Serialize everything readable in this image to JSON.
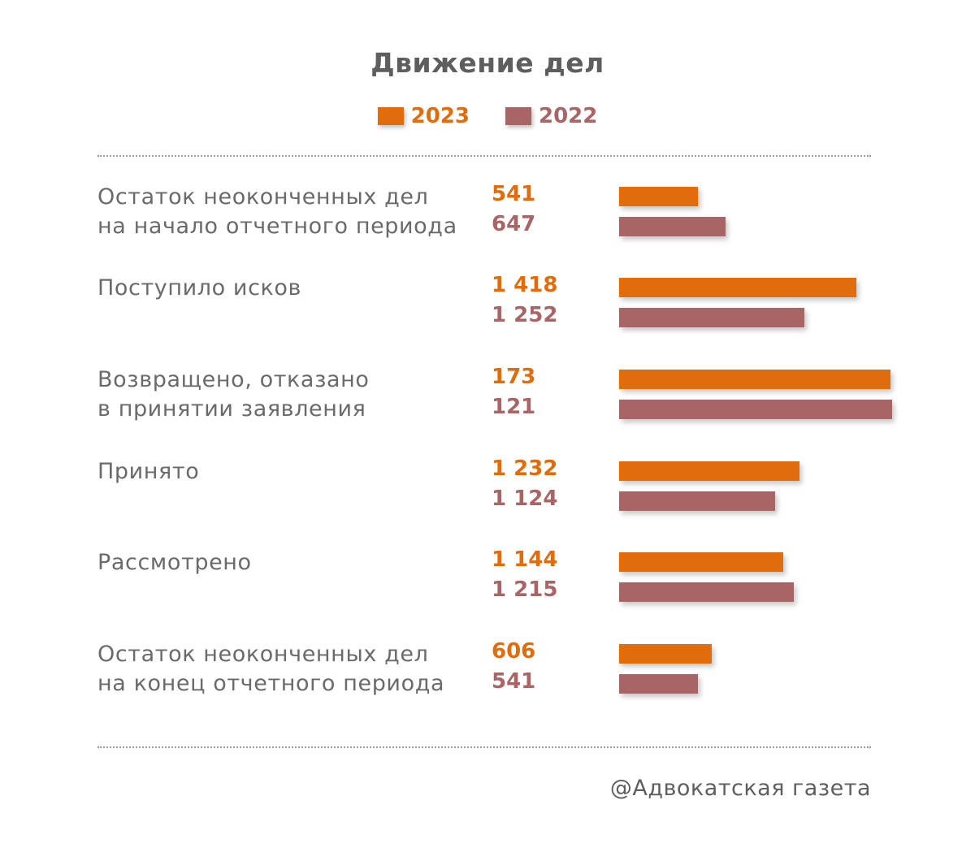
{
  "chart_data": {
    "type": "bar",
    "orientation": "horizontal",
    "title": "Движение дел",
    "legend_position": "top-center",
    "colors": {
      "2023": "#e06c0c",
      "2022": "#a96565"
    },
    "legend": [
      {
        "name": "2023",
        "color": "#e06c0c"
      },
      {
        "name": "2022",
        "color": "#a96565"
      }
    ],
    "categories": [
      [
        "Остаток неоконченных дел",
        "на начало отчетного периода"
      ],
      [
        "Поступило исков"
      ],
      [
        "Возвращено, отказано",
        "в принятии заявления"
      ],
      [
        "Принято"
      ],
      [
        "Рассмотрено"
      ],
      [
        "Остаток неоконченных дел",
        "на конец отчетного периода"
      ]
    ],
    "series": [
      {
        "name": "2023",
        "values": [
          541,
          1418,
          173,
          1232,
          1144,
          606
        ],
        "labels": [
          "541",
          "1 418",
          "173",
          "1 232",
          "1 144",
          "606"
        ]
      },
      {
        "name": "2022",
        "values": [
          647,
          1252,
          121,
          1124,
          1215,
          541
        ],
        "labels": [
          "647",
          "1 252",
          "121",
          "1 124",
          "1 215",
          "541"
        ]
      }
    ],
    "bar_scale": "bars drawn at an approximate length that does not track the values for every row (e.g. 173 / 121 drawn long)",
    "bar_fraction": [
      [
        0.29,
        0.39
      ],
      [
        0.87,
        0.68
      ],
      [
        0.995,
        1.0
      ],
      [
        0.66,
        0.57
      ],
      [
        0.6,
        0.64
      ],
      [
        0.34,
        0.29
      ]
    ]
  },
  "footer": {
    "credit": "@Адвокатская газета"
  }
}
